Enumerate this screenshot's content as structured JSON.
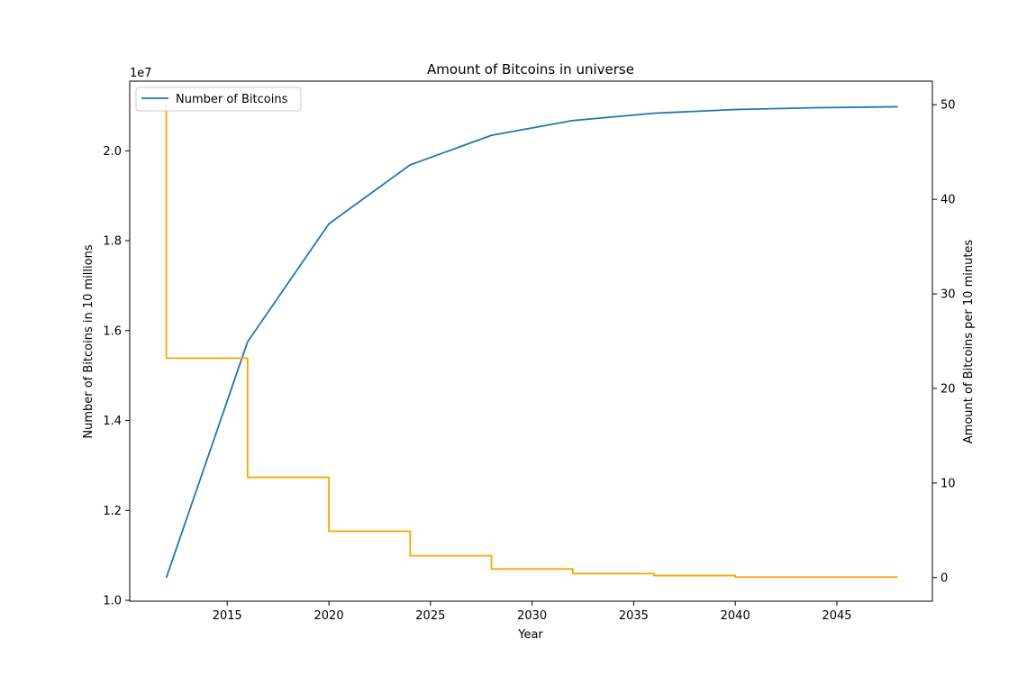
{
  "chart_data": {
    "type": "line",
    "title": "Amount of Bitcoins in universe",
    "xlabel": "Year",
    "ylabel_left": "Number of Bitcoins in 10 millions",
    "ylabel_right": "Amount of Bitcoins per 10 minutes",
    "left_offset_label": "1e7",
    "xlim": [
      2010.2,
      2049.7
    ],
    "ylim_left": [
      9980000,
      21550000
    ],
    "ylim_right": [
      -2.5,
      52.5
    ],
    "x_ticks": [
      2015,
      2020,
      2025,
      2030,
      2035,
      2040,
      2045
    ],
    "left_ticks": [
      {
        "value": 10000000,
        "label": "1.0"
      },
      {
        "value": 12000000,
        "label": "1.2"
      },
      {
        "value": 14000000,
        "label": "1.4"
      },
      {
        "value": 16000000,
        "label": "1.6"
      },
      {
        "value": 18000000,
        "label": "1.8"
      },
      {
        "value": 20000000,
        "label": "2.0"
      }
    ],
    "right_ticks": [
      0,
      10,
      20,
      30,
      40,
      50
    ],
    "grid": false,
    "legend": {
      "placement": "top-left",
      "entries": [
        "Number of Bitcoins"
      ]
    },
    "series": [
      {
        "name": "Number of Bitcoins",
        "axis": "left",
        "color": "#1f77b4",
        "x": [
          2012,
          2016,
          2020,
          2024,
          2028,
          2032,
          2036,
          2040,
          2044,
          2048
        ],
        "y": [
          10500000,
          15750000,
          18375000,
          19687500,
          20343750,
          20671875,
          20835938,
          20917969,
          20958984,
          20979492
        ]
      },
      {
        "axis": "right",
        "color": "#ffa500",
        "step": "post",
        "x": [
          2012,
          2012,
          2016,
          2020,
          2024,
          2028,
          2032,
          2036,
          2040,
          2044,
          2048
        ],
        "y": [
          50,
          23.2,
          10.6,
          4.9,
          2.3,
          0.9,
          0.42,
          0.21,
          0.05,
          0.05,
          0.05
        ]
      }
    ]
  },
  "colors": {
    "axis": "#000000",
    "legend_border": "#cccccc"
  }
}
